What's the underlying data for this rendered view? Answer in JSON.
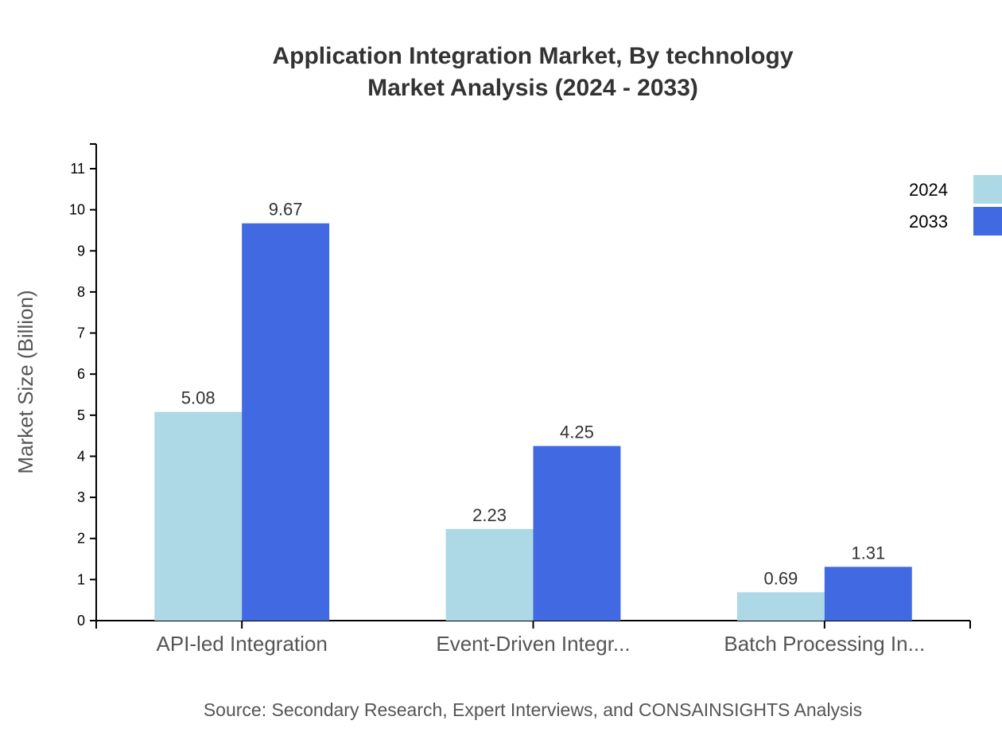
{
  "chart_data": {
    "type": "bar",
    "title": "Application Integration Market, By technology",
    "subtitle": "Market Analysis (2024 - 2033)",
    "xlabel": "",
    "ylabel": "Market Size (Billion)",
    "ylim": [
      0,
      11.6
    ],
    "yticks": [
      0,
      1,
      2,
      3,
      4,
      5,
      6,
      7,
      8,
      9,
      10,
      11
    ],
    "grid": false,
    "legend_position": "top-right",
    "categories": [
      "API-led Integration",
      "Event-Driven Integr...",
      "Batch Processing In..."
    ],
    "series": [
      {
        "name": "2024",
        "color": "#add8e6",
        "values": [
          5.08,
          2.23,
          0.69
        ]
      },
      {
        "name": "2033",
        "color": "#4169e1",
        "values": [
          9.67,
          4.25,
          1.31
        ]
      }
    ],
    "source": "Source: Secondary Research, Expert Interviews, and CONSAINSIGHTS Analysis"
  }
}
